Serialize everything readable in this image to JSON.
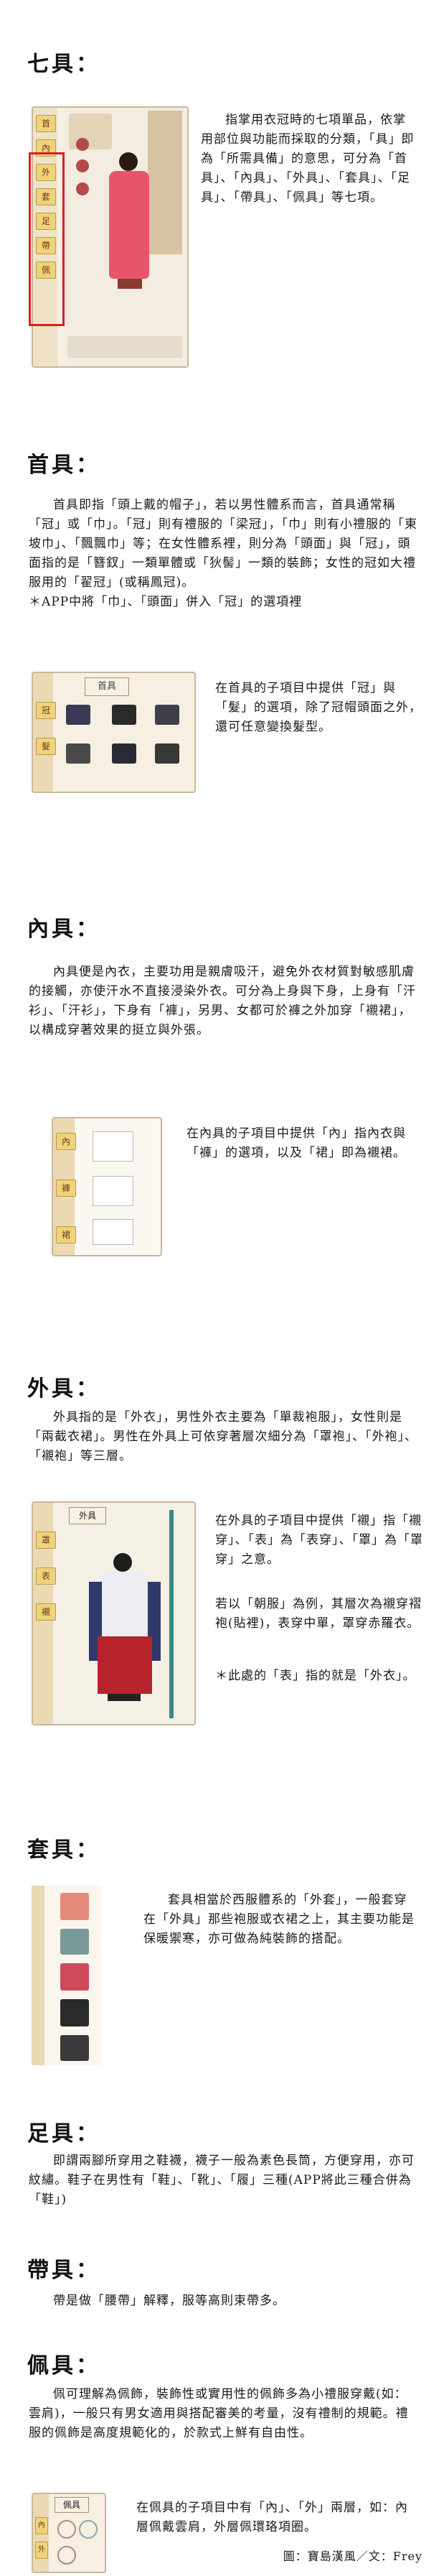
{
  "sections": {
    "qiju": {
      "title": "七具：",
      "body": "指掌用衣冠時的七項單品，依掌用部位與功能而採取的分類，「具」即為「所需具備」的意思，可分為「首具」、「內具」、「外具」、「套具」、「足具」、「帶具」、「佩具」等七項。",
      "tabs": [
        "首",
        "內",
        "外",
        "套",
        "足",
        "帶",
        "佩"
      ]
    },
    "shouju": {
      "title": "首具：",
      "body": "首具即指「頭上戴的帽子」，若以男性體系而言，首具通常稱「冠」或「巾」。「冠」則有禮服的「梁冠」，「巾」則有小禮服的「東坡巾」、「飄飄巾」等；在女性體系裡，則分為「頭面」與「冠」，頭面指的是「簪釵」一類單體或「狄髻」一類的裝飾；女性的冠如大禮服用的「翟冠」(或稱鳳冠)。\n＊APP中將「巾」、「頭面」併入「冠」的選項裡",
      "caption": "在首具的子項目中提供「冠」與「髮」的選項，除了冠帽頭面之外，還可任意變換髮型。",
      "panel_title": "首具",
      "tabs": [
        "冠",
        "髮"
      ]
    },
    "neiju": {
      "title": "內具：",
      "body": "內具便是內衣，主要功用是親膚吸汗，避免外衣材質對敏感肌膚的接觸，亦使汗水不直接浸染外衣。可分為上身與下身，上身有「汗衫」、「汗衫」，下身有「褲」，另男、女都可於褲之外加穿「襯裙」，以構成穿著效果的挺立與外張。",
      "caption": "在內具的子項目中提供「內」指內衣與「褲」的選項，以及「裙」即為襯裙。",
      "tabs": [
        "內",
        "褲",
        "裙"
      ]
    },
    "waiju": {
      "title": "外具：",
      "body": "外具指的是「外衣」，男性外衣主要為「單裁袍服」，女性則是「兩截衣裙」。男性在外具上可依穿著層次細分為「罩袍」、「外袍」、「襯袍」等三層。",
      "caption1": "在外具的子項目中提供「襯」指「襯穿」、「表」為「表穿」、「罩」為「罩穿」之意。",
      "caption2": "若以「朝服」為例，其層次為襯穿褶袍(貼裡)，表穿中單，罩穿赤羅衣。",
      "caption3": "＊此處的「表」指的就是「外衣」。",
      "panel_title": "外具",
      "tabs": [
        "罩",
        "表",
        "襯"
      ]
    },
    "taoju": {
      "title": "套具：",
      "body": "套具相當於西服體系的「外套」，一般套穿在「外具」那些袍服或衣裙之上，其主要功能是保暖禦寒，亦可做為純裝飾的搭配。"
    },
    "zuju": {
      "title": "足具：",
      "body": "即謂兩腳所穿用之鞋襪，襪子一般為素色長筒，方便穿用，亦可紋繡。鞋子在男性有「鞋」、「靴」、「履」三種(APP將此三種合併為「鞋」)"
    },
    "daiju": {
      "title": "帶具：",
      "body": "帶是做「腰帶」解釋，服等高則束帶多。"
    },
    "peiju": {
      "title": "佩具：",
      "body": "佩可理解為佩飾，裝飾性或實用性的佩飾多為小禮服穿戴(如：雲肩)，一般只有男女適用與搭配審美的考量，沒有禮制的規範。禮服的佩飾是高度規範化的，於款式上鮮有自由性。",
      "caption": "在佩具的子項目中有「內」、「外」兩層，如：內層佩戴雲肩，外層佩環珞項圈。",
      "panel_title": "佩具",
      "tabs": [
        "內",
        "外"
      ]
    }
  },
  "credit": "圖：寶島漢風／文：Frey",
  "colors": {
    "accent_red": "#d82020",
    "frame_tan": "#c9b79a",
    "tab_gold": "#efd27a",
    "teal": "#3a8a86"
  }
}
